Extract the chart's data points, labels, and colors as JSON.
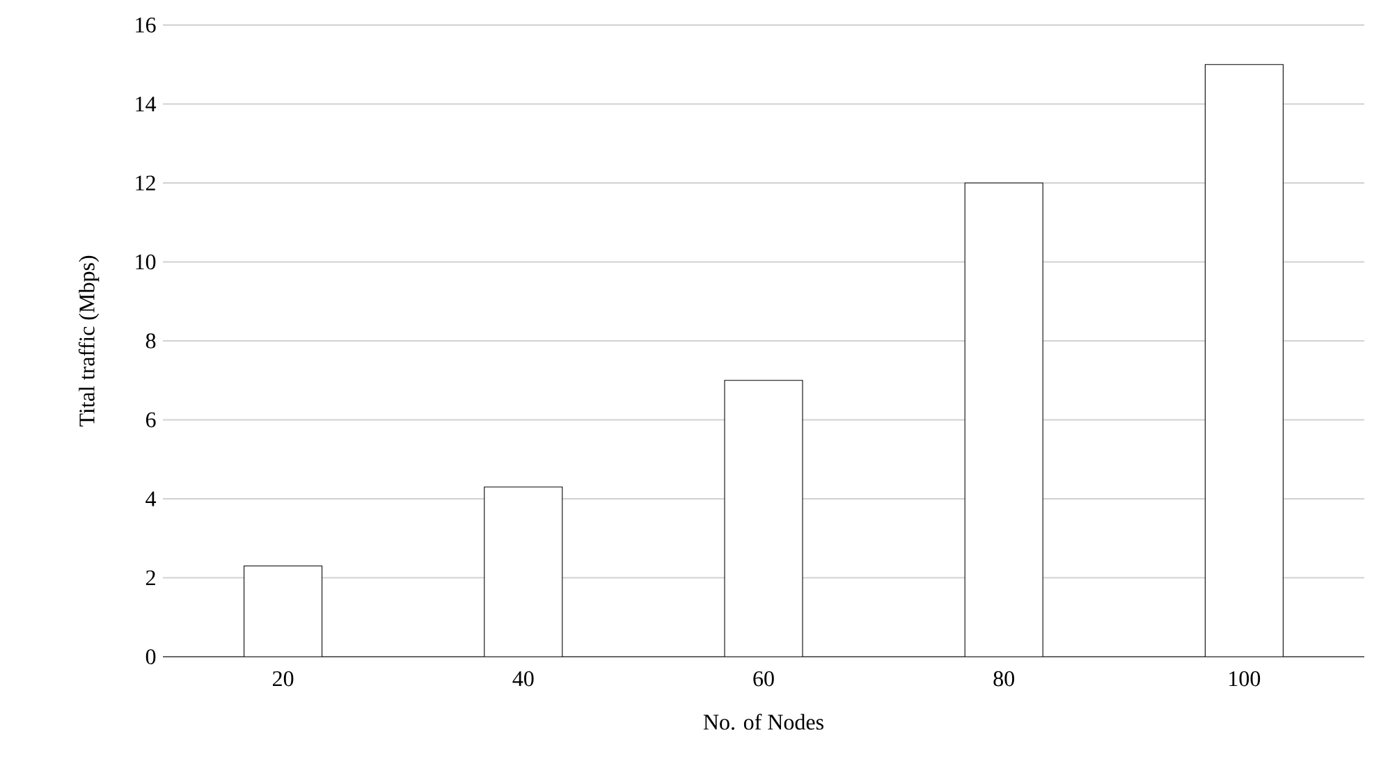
{
  "chart_data": {
    "type": "bar",
    "xlabel": "No. of Nodes",
    "ylabel": "Tital traffic (Mbps)",
    "categories": [
      "20",
      "40",
      "60",
      "80",
      "100"
    ],
    "values": [
      2.3,
      4.3,
      7.0,
      12.0,
      15.0
    ],
    "color": "#ffffff",
    "ylim": [
      0,
      16
    ],
    "yticks": [
      0,
      2,
      4,
      6,
      8,
      10,
      12,
      14,
      16
    ],
    "grid": "y"
  }
}
